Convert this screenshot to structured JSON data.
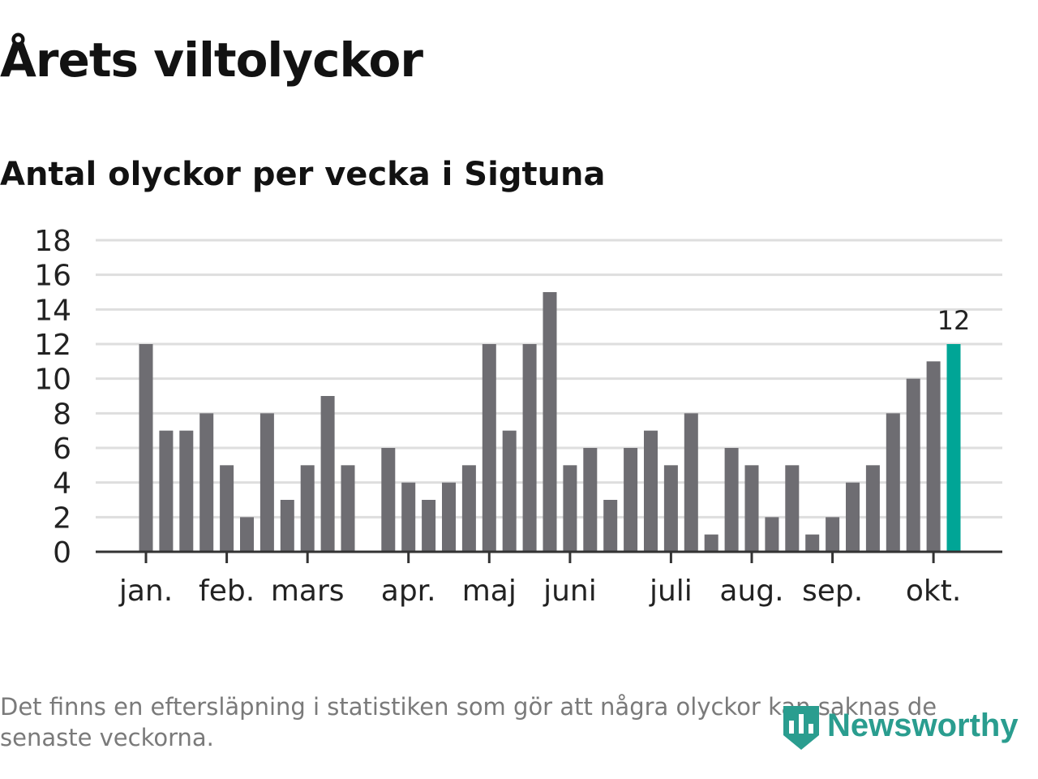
{
  "title": "Årets viltolyckor",
  "subtitle": "Antal olyckor per vecka i Sigtuna",
  "footnote": "Det finns en eftersläpning i statistiken som gör att några olyckor kan saknas de senaste veckorna.",
  "logo": {
    "text": "Newsworthy",
    "icon": "bar-chart-shield-icon"
  },
  "colors": {
    "bar": "#6e6d72",
    "highlight": "#00a596",
    "grid": "#dedede",
    "axis": "#333333",
    "logo": "#2a9d8f"
  },
  "chart_data": {
    "type": "bar",
    "title": "Antal olyckor per vecka i Sigtuna",
    "xlabel": "",
    "ylabel": "",
    "ylim": [
      0,
      18
    ],
    "yticks": [
      0,
      2,
      4,
      6,
      8,
      10,
      12,
      14,
      16,
      18
    ],
    "grid": true,
    "values": [
      null,
      null,
      12,
      7,
      7,
      8,
      5,
      2,
      8,
      3,
      5,
      9,
      5,
      null,
      6,
      4,
      3,
      4,
      5,
      12,
      7,
      12,
      15,
      5,
      6,
      3,
      6,
      7,
      5,
      8,
      1,
      6,
      5,
      2,
      5,
      1,
      2,
      4,
      5,
      8,
      10,
      11,
      12
    ],
    "month_labels": [
      {
        "label": "jan.",
        "index": 2
      },
      {
        "label": "feb.",
        "index": 6
      },
      {
        "label": "mars",
        "index": 10
      },
      {
        "label": "apr.",
        "index": 15
      },
      {
        "label": "maj",
        "index": 19
      },
      {
        "label": "juni",
        "index": 23
      },
      {
        "label": "juli",
        "index": 28
      },
      {
        "label": "aug.",
        "index": 32
      },
      {
        "label": "sep.",
        "index": 36
      },
      {
        "label": "okt.",
        "index": 41
      }
    ],
    "highlight": {
      "index": 42,
      "label": "12"
    }
  }
}
